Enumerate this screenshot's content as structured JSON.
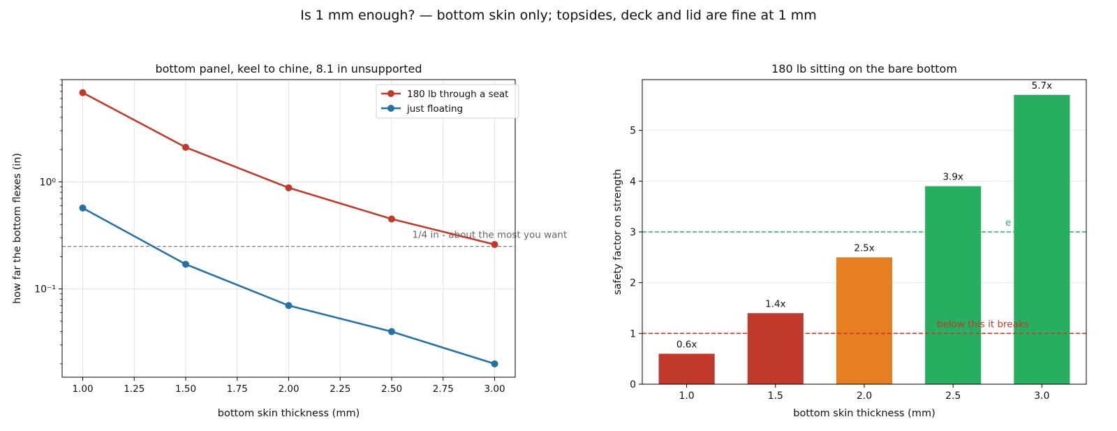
{
  "suptitle": "Is 1 mm enough?  —  bottom skin only; topsides, deck and lid are fine at 1 mm",
  "chart_data": [
    {
      "type": "line",
      "title": "bottom panel, keel to chine, 8.1 in unsupported",
      "xlabel": "bottom skin thickness  (mm)",
      "ylabel": "how far the bottom flexes  (in)",
      "yscale": "log",
      "xlim": [
        0.9,
        3.1
      ],
      "ylim": [
        0.015,
        9.0
      ],
      "xticks": [
        "1.00",
        "1.25",
        "1.50",
        "1.75",
        "2.00",
        "2.25",
        "2.50",
        "2.75",
        "3.00"
      ],
      "yticks": [
        "10⁻¹",
        "10⁰"
      ],
      "x": [
        1.0,
        1.5,
        2.0,
        2.5,
        3.0
      ],
      "series": [
        {
          "name": "180 lb through a seat",
          "values": [
            6.8,
            2.1,
            0.88,
            0.45,
            0.26
          ],
          "color": "#c0392b"
        },
        {
          "name": "just floating",
          "values": [
            0.57,
            0.17,
            0.07,
            0.04,
            0.02
          ],
          "color": "#2471a3"
        }
      ],
      "reference_line": {
        "y": 0.25,
        "color": "#7f7f7f",
        "label": "1/4 in - about the most you want"
      },
      "grid": true,
      "legend": "top-right"
    },
    {
      "type": "bar",
      "title": "180 lb sitting on the bare bottom",
      "xlabel": "bottom skin thickness  (mm)",
      "ylabel": "safety factor on strength",
      "categories": [
        "1.0",
        "1.5",
        "2.0",
        "2.5",
        "3.0"
      ],
      "values": [
        0.6,
        1.4,
        2.5,
        3.9,
        5.7
      ],
      "bar_labels": [
        "0.6x",
        "1.4x",
        "2.5x",
        "3.9x",
        "5.7x"
      ],
      "bar_colors": [
        "#c0392b",
        "#c0392b",
        "#e67e22",
        "#27ae60",
        "#27ae60"
      ],
      "ylim": [
        0,
        6
      ],
      "yticks": [
        "0",
        "1",
        "2",
        "3",
        "4",
        "5"
      ],
      "reference_lines": [
        {
          "y": 3,
          "color": "#27ae60",
          "label": "e marg"
        },
        {
          "y": 1,
          "color": "#c0392b",
          "label": "below this it breaks"
        }
      ],
      "grid": true
    }
  ]
}
